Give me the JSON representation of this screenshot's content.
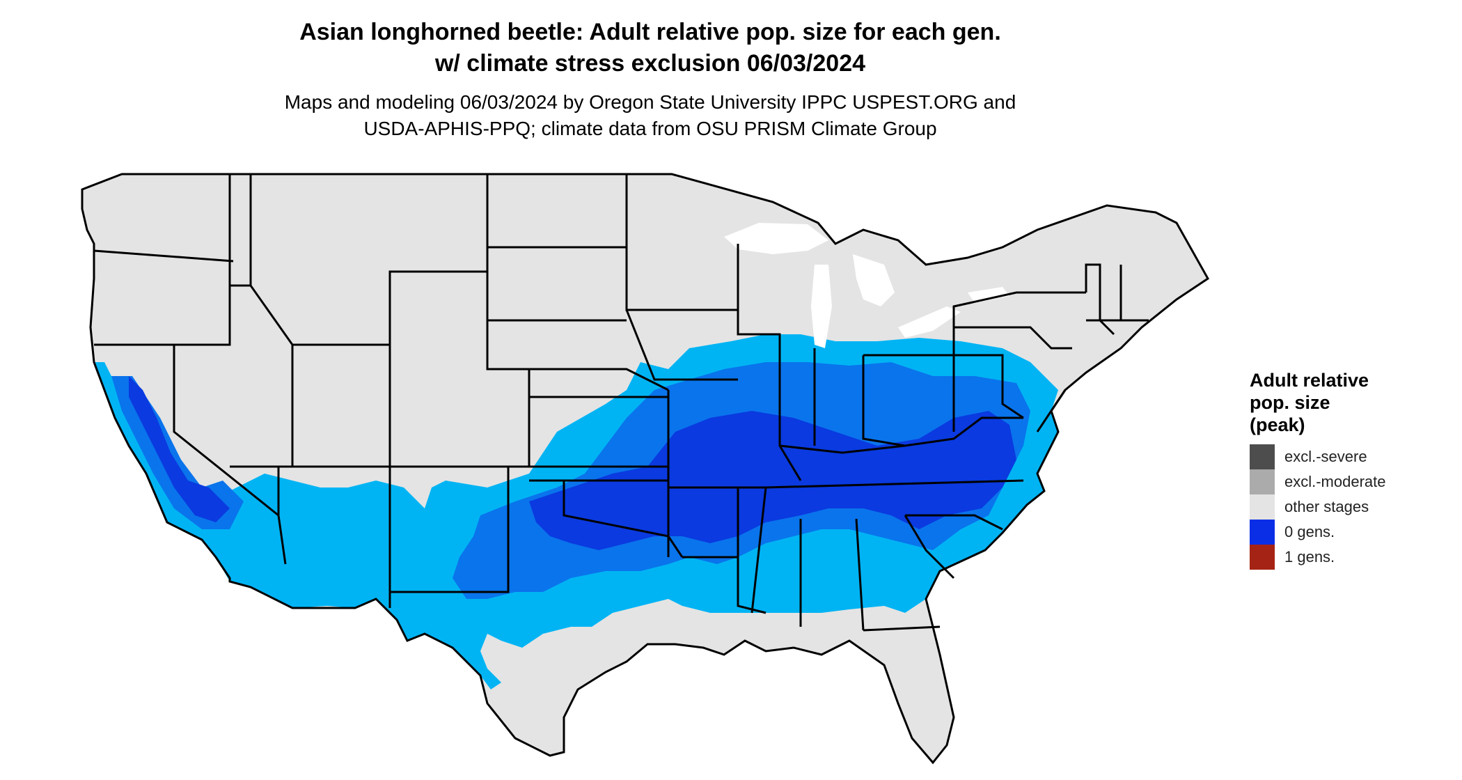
{
  "title": {
    "line1": "Asian longhorned beetle: Adult relative pop. size for each gen.",
    "line2": "w/ climate stress exclusion 06/03/2024"
  },
  "subtitle": {
    "line1": "Maps and modeling 06/03/2024 by Oregon State University IPPC USPEST.ORG and",
    "line2": "USDA-APHIS-PPQ; climate data from OSU PRISM Climate Group"
  },
  "legend": {
    "title_lines": [
      "Adult relative",
      "pop. size",
      "(peak)"
    ],
    "items": [
      {
        "label": "excl.-severe",
        "color": "#4d4d4d"
      },
      {
        "label": "excl.-moderate",
        "color": "#ababab"
      },
      {
        "label": "other stages",
        "color": "#e4e4e4"
      },
      {
        "label": "0 gens.",
        "color": "#0a2ee6"
      },
      {
        "label": "1 gens.",
        "color": "#a52314"
      }
    ]
  },
  "map_colors": {
    "land": "#e4e4e4",
    "light_blue": "#00b4f4",
    "mid_blue": "#0a74ec",
    "dark_blue": "#0a3ae0",
    "border": "#000000"
  }
}
